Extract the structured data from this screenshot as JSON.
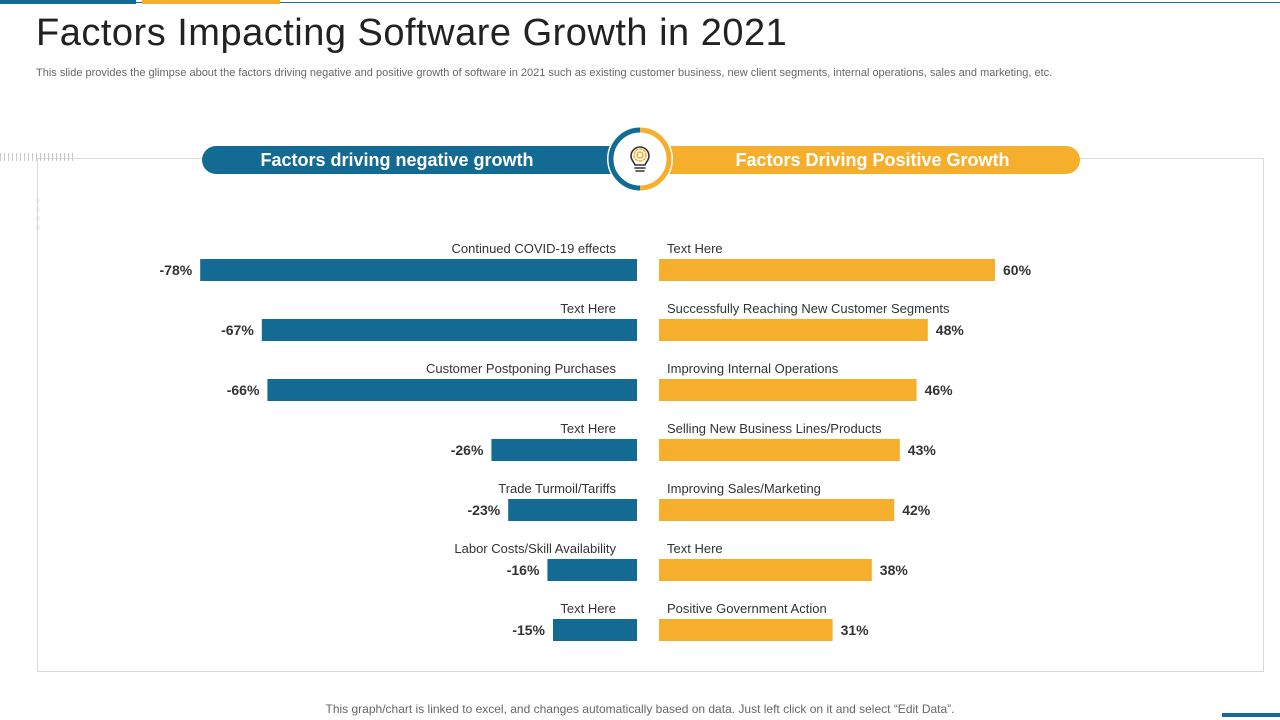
{
  "slide": {
    "title": "Factors Impacting Software Growth in 2021",
    "subtitle": "This slide provides the glimpse about the factors driving negative and positive growth of software in 2021 such as existing customer business, new client segments, internal operations, sales and marketing, etc.",
    "footer": "This graph/chart is linked to excel,  and changes automatically based on data. Just left click on it and select “Edit Data”."
  },
  "header": {
    "negative_label": "Factors driving negative growth",
    "positive_label": "Factors Driving Positive Growth",
    "center_icon": "lightbulb-gear-icon"
  },
  "colors": {
    "negative": "#136b93",
    "positive": "#f6ae2d",
    "text": "#333333"
  },
  "chart_data": {
    "type": "bar",
    "title": "",
    "value_unit": "%",
    "xlim_negative": [
      -100,
      0
    ],
    "xlim_positive": [
      0,
      100
    ],
    "series": [
      {
        "name": "Factors driving negative growth",
        "categories": [
          "Continued COVID-19  effects",
          "Text Here",
          "Customer Postponing Purchases",
          "Text Here",
          "Trade Turmoil/Tariffs",
          "Labor Costs/Skill Availability",
          "Text Here"
        ],
        "values": [
          -78,
          -67,
          -66,
          -26,
          -23,
          -16,
          -15
        ],
        "value_labels": [
          "-78%",
          "-67%",
          "-66%",
          "-26%",
          "-23%",
          "-16%",
          "-15%"
        ]
      },
      {
        "name": "Factors Driving Positive Growth",
        "categories": [
          "Text Here",
          "Successfully Reaching New Customer  Segments",
          "Improving  Internal Operations",
          "Selling New  Business Lines/Products",
          "Improving  Sales/Marketing",
          "Text Here",
          "Positive Government  Action"
        ],
        "values": [
          60,
          48,
          46,
          43,
          42,
          38,
          31
        ],
        "value_labels": [
          "60%",
          "48%",
          "46%",
          "43%",
          "42%",
          "38%",
          "31%"
        ]
      }
    ]
  }
}
